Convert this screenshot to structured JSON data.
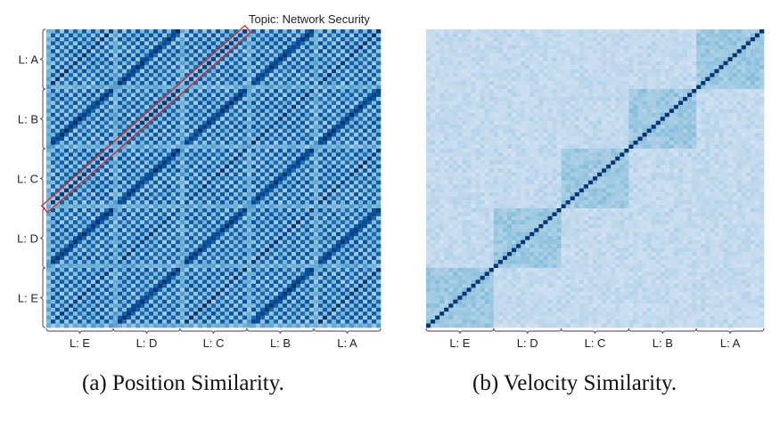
{
  "chart_data": [
    {
      "type": "heatmap",
      "title": "Position Similarity.",
      "caption_prefix": "(a)",
      "x_group_labels": [
        "L: E",
        "L: D",
        "L: C",
        "L: B",
        "L: A"
      ],
      "y_group_labels": [
        "L: A",
        "L: B",
        "L: C",
        "L: D",
        "L: E"
      ],
      "cells_per_group": 15,
      "pattern": "checkerboard with per-block diagonals",
      "annotation": "Topic: Network Security",
      "colormap": "Blues",
      "value_range": [
        0,
        1
      ]
    },
    {
      "type": "heatmap",
      "title": "Velocity Similarity.",
      "caption_prefix": "(b)",
      "x_group_labels": [
        "L: E",
        "L: D",
        "L: C",
        "L: B",
        "L: A"
      ],
      "cells_per_group": 15,
      "pattern": "block-diagonal with strong main diagonal",
      "colormap": "Blues",
      "value_range": [
        0,
        1
      ]
    }
  ],
  "colors": {
    "annotation_box": "#d62728",
    "bracket": "#6b5b8e",
    "cmap_low": "#f7fbff",
    "cmap_high": "#08306b"
  },
  "captions": {
    "a": "(a) Position Similarity.",
    "b": "(b) Velocity Similarity."
  }
}
